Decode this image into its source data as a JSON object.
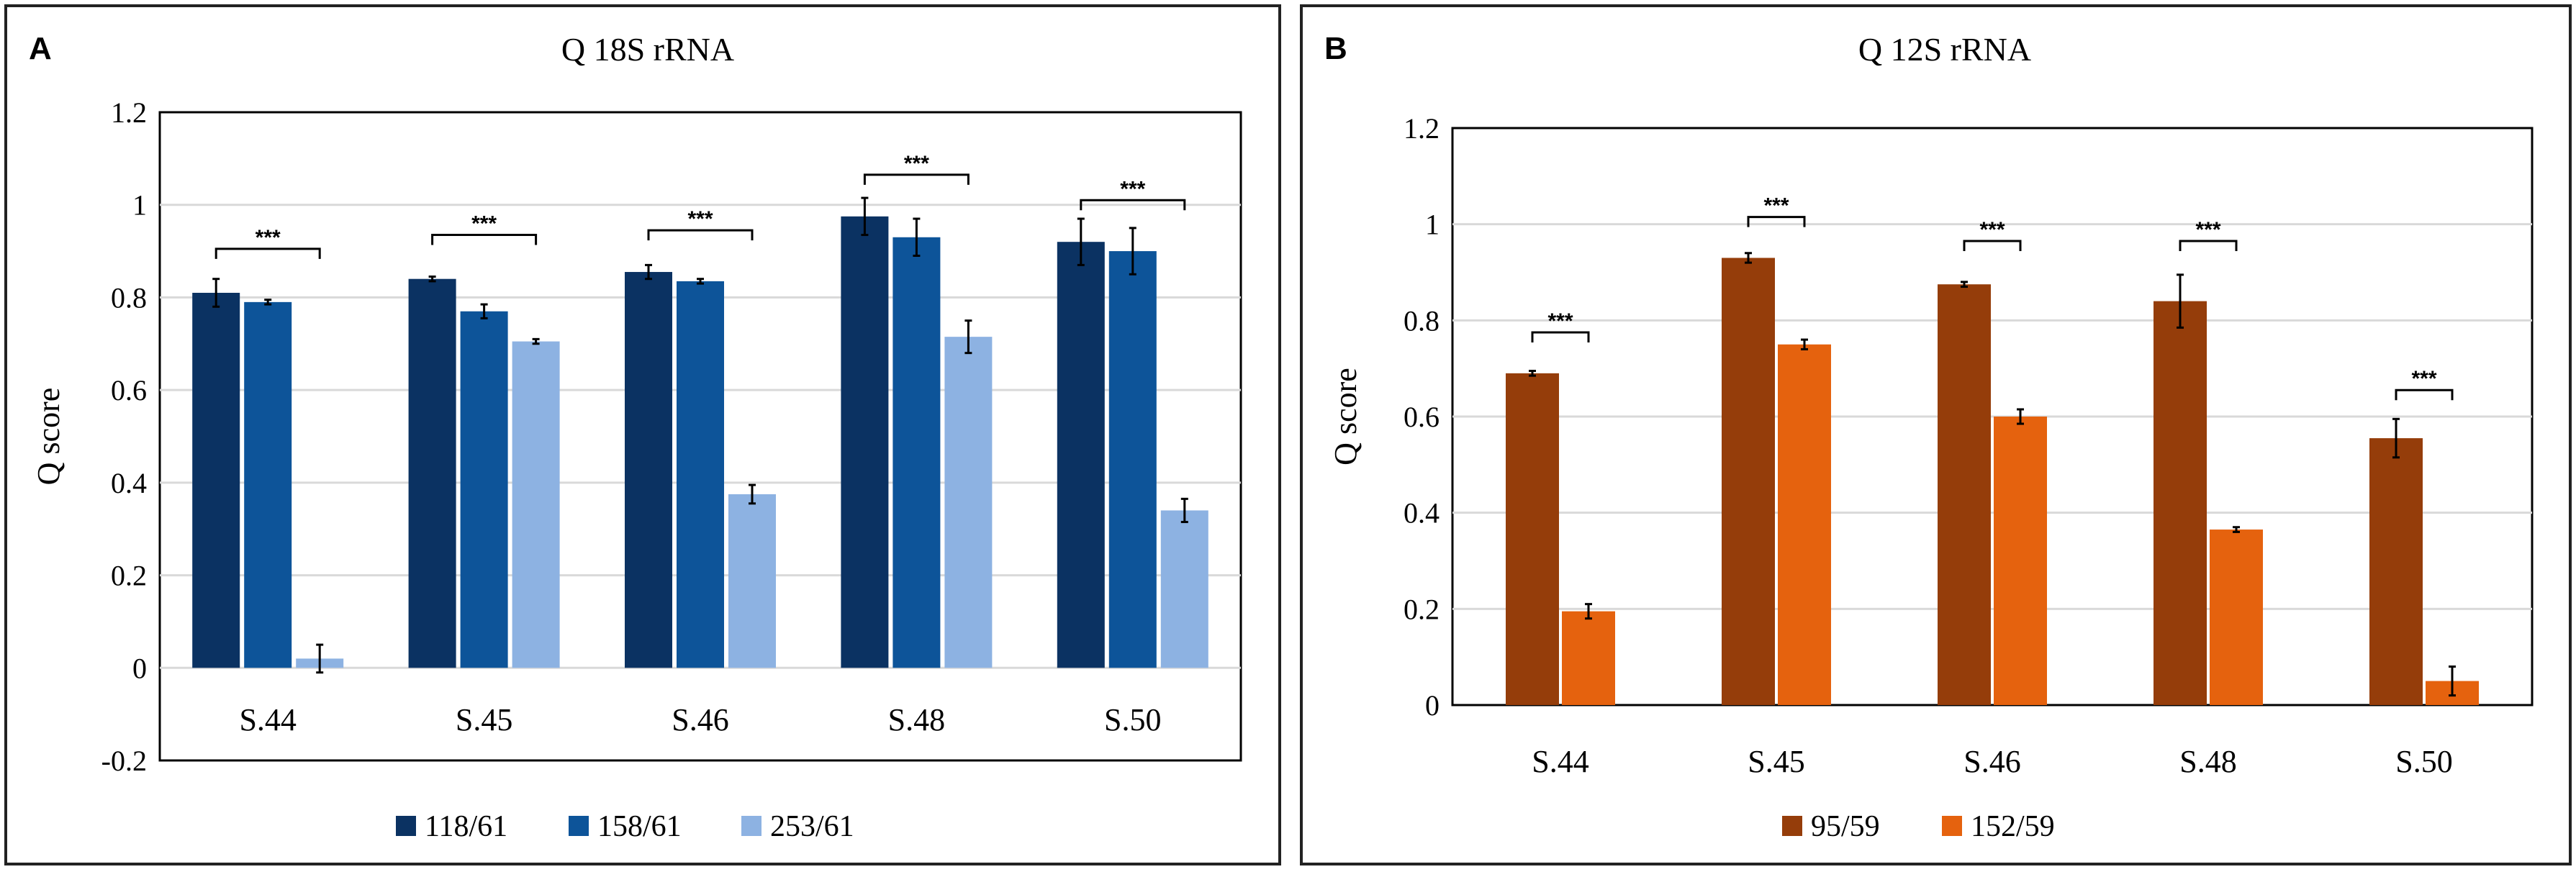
{
  "chart_data": [
    {
      "panel_label": "A",
      "type": "bar",
      "title": "Q 18S rRNA",
      "ylabel": "Q score",
      "xlabel": "",
      "ylim": [
        -0.2,
        1.2
      ],
      "yticks": [
        "-0.2",
        "0",
        "0.2",
        "0.4",
        "0.6",
        "0.8",
        "1",
        "1.2"
      ],
      "ytick_values": [
        -0.2,
        0,
        0.2,
        0.4,
        0.6,
        0.8,
        1,
        1.2
      ],
      "grid": true,
      "legend_position": "bottom",
      "categories": [
        "S.44",
        "S.45",
        "S.46",
        "S.48",
        "S.50"
      ],
      "series": [
        {
          "name": "118/61",
          "color": "#0b3262",
          "values": [
            0.81,
            0.84,
            0.855,
            0.975,
            0.92
          ],
          "errors": [
            0.03,
            0.005,
            0.015,
            0.04,
            0.05
          ]
        },
        {
          "name": "158/61",
          "color": "#0d5499",
          "values": [
            0.79,
            0.77,
            0.835,
            0.93,
            0.9
          ],
          "errors": [
            0.005,
            0.015,
            0.005,
            0.04,
            0.05
          ]
        },
        {
          "name": "253/61",
          "color": "#8db2e2",
          "values": [
            0.02,
            0.705,
            0.375,
            0.715,
            0.34
          ],
          "errors": [
            0.03,
            0.005,
            0.02,
            0.035,
            0.025
          ]
        }
      ],
      "significance": [
        {
          "category": "S.44",
          "label": "***",
          "level": 0.905
        },
        {
          "category": "S.45",
          "label": "***",
          "level": 0.935
        },
        {
          "category": "S.46",
          "label": "***",
          "level": 0.945
        },
        {
          "category": "S.48",
          "label": "***",
          "level": 1.065
        },
        {
          "category": "S.50",
          "label": "***",
          "level": 1.01
        }
      ]
    },
    {
      "panel_label": "B",
      "type": "bar",
      "title": "Q 12S rRNA",
      "ylabel": "Q score",
      "xlabel": "",
      "ylim": [
        0,
        1.2
      ],
      "yticks": [
        "0",
        "0.2",
        "0.4",
        "0.6",
        "0.8",
        "1",
        "1.2"
      ],
      "ytick_values": [
        0,
        0.2,
        0.4,
        0.6,
        0.8,
        1,
        1.2
      ],
      "grid": true,
      "legend_position": "bottom",
      "categories": [
        "S.44",
        "S.45",
        "S.46",
        "S.48",
        "S.50"
      ],
      "series": [
        {
          "name": "95/59",
          "color": "#953d0a",
          "values": [
            0.69,
            0.93,
            0.875,
            0.84,
            0.555
          ],
          "errors": [
            0.005,
            0.01,
            0.005,
            0.055,
            0.04
          ]
        },
        {
          "name": "152/59",
          "color": "#e5620e",
          "values": [
            0.195,
            0.75,
            0.6,
            0.365,
            0.05
          ],
          "errors": [
            0.015,
            0.01,
            0.015,
            0.005,
            0.03
          ]
        }
      ],
      "significance": [
        {
          "category": "S.44",
          "label": "***",
          "level": 0.775
        },
        {
          "category": "S.45",
          "label": "***",
          "level": 1.015
        },
        {
          "category": "S.46",
          "label": "***",
          "level": 0.965
        },
        {
          "category": "S.48",
          "label": "***",
          "level": 0.965
        },
        {
          "category": "S.50",
          "label": "***",
          "level": 0.655
        }
      ]
    }
  ]
}
